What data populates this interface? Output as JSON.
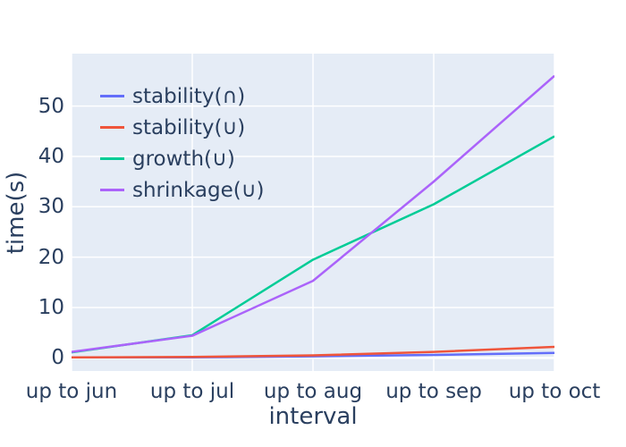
{
  "chart_data": {
    "type": "line",
    "title": "",
    "xlabel": "interval",
    "ylabel": "time(s)",
    "categories": [
      "up to jun",
      "up to jul",
      "up to aug",
      "up to sep",
      "up to oct"
    ],
    "series": [
      {
        "name": "stability(∩)",
        "color": "#636EFA",
        "values": [
          0.1,
          0.1,
          0.3,
          0.6,
          1.0
        ]
      },
      {
        "name": "stability(∪)",
        "color": "#EF553B",
        "values": [
          0.1,
          0.2,
          0.5,
          1.2,
          2.2
        ]
      },
      {
        "name": "growth(∪)",
        "color": "#00CC96",
        "values": [
          1.1,
          4.5,
          19.5,
          30.5,
          44.0
        ]
      },
      {
        "name": "shrinkage(∪)",
        "color": "#AB63FA",
        "values": [
          1.2,
          4.4,
          15.3,
          35.0,
          56.0
        ]
      }
    ],
    "yticks": [
      0,
      10,
      20,
      30,
      40,
      50
    ],
    "ylim": [
      -2.6,
      60.4
    ],
    "grid": true,
    "grid_color": "#FFFFFF",
    "plot_bg": "#E5ECF6",
    "text_color": "#2a3f5f",
    "legend_position": "top-left-inside"
  }
}
